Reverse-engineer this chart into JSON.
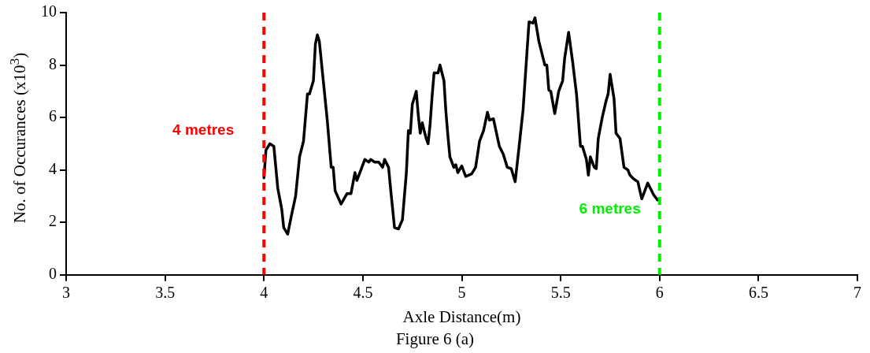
{
  "chart_data": {
    "type": "line",
    "xlabel": "Axle Distance(m)",
    "ylabel": "No. of Occurances (x10$^{3}$)",
    "x": [
      4.0,
      4.01,
      4.03,
      4.05,
      4.07,
      4.09,
      4.1,
      4.12,
      4.14,
      4.16,
      4.18,
      4.2,
      4.22,
      4.23,
      4.25,
      4.26,
      4.27,
      4.28,
      4.3,
      4.32,
      4.34,
      4.35,
      4.36,
      4.39,
      4.42,
      4.44,
      4.46,
      4.47,
      4.48,
      4.51,
      4.53,
      4.54,
      4.56,
      4.58,
      4.6,
      4.61,
      4.63,
      4.64,
      4.66,
      4.68,
      4.7,
      4.72,
      4.73,
      4.74,
      4.75,
      4.77,
      4.78,
      4.79,
      4.8,
      4.82,
      4.83,
      4.84,
      4.85,
      4.86,
      4.88,
      4.89,
      4.91,
      4.92,
      4.93,
      4.94,
      4.96,
      4.97,
      4.98,
      5.0,
      5.02,
      5.05,
      5.07,
      5.09,
      5.11,
      5.13,
      5.14,
      5.16,
      5.19,
      5.21,
      5.23,
      5.25,
      5.27,
      5.29,
      5.31,
      5.34,
      5.36,
      5.37,
      5.39,
      5.42,
      5.43,
      5.44,
      5.45,
      5.47,
      5.49,
      5.51,
      5.52,
      5.54,
      5.56,
      5.58,
      5.6,
      5.61,
      5.63,
      5.64,
      5.65,
      5.67,
      5.68,
      5.69,
      5.71,
      5.73,
      5.74,
      5.75,
      5.77,
      5.78,
      5.8,
      5.82,
      5.84,
      5.85,
      5.87,
      5.89,
      5.91,
      5.94,
      5.97,
      5.99
    ],
    "series": [
      {
        "color": "#000000",
        "values": [
          3.7,
          4.75,
          5.0,
          4.9,
          3.3,
          2.5,
          1.8,
          1.55,
          2.3,
          3.0,
          4.5,
          5.1,
          6.9,
          6.9,
          7.4,
          8.8,
          9.15,
          8.9,
          7.4,
          5.9,
          4.1,
          4.1,
          3.2,
          2.7,
          3.1,
          3.1,
          3.9,
          3.6,
          3.8,
          4.4,
          4.3,
          4.4,
          4.3,
          4.3,
          4.1,
          4.4,
          4.1,
          3.3,
          1.8,
          1.75,
          2.1,
          3.9,
          5.5,
          5.4,
          6.5,
          7.0,
          6.1,
          5.4,
          5.8,
          5.2,
          5.0,
          5.75,
          6.8,
          7.7,
          7.7,
          8.0,
          7.4,
          6.2,
          5.3,
          4.5,
          4.1,
          4.2,
          3.9,
          4.15,
          3.75,
          3.85,
          4.1,
          5.1,
          5.5,
          6.2,
          5.9,
          5.95,
          4.9,
          4.6,
          4.1,
          4.05,
          3.55,
          4.9,
          6.3,
          9.65,
          9.6,
          9.8,
          8.9,
          8.0,
          8.0,
          7.05,
          7.0,
          6.15,
          7.0,
          7.4,
          8.25,
          9.25,
          8.15,
          6.9,
          4.9,
          4.9,
          4.4,
          3.8,
          4.5,
          4.1,
          4.05,
          5.2,
          6.0,
          6.65,
          6.9,
          7.65,
          6.7,
          5.4,
          5.2,
          4.1,
          4.0,
          3.8,
          3.65,
          3.55,
          2.9,
          3.5,
          3.05,
          2.85
        ]
      }
    ],
    "xlim": [
      3,
      7
    ],
    "xticks": [
      3,
      3.5,
      4,
      4.5,
      5,
      5.5,
      6,
      6.5,
      7
    ],
    "ylim": [
      0,
      10
    ],
    "yticks": [
      0,
      2,
      4,
      6,
      8,
      10
    ],
    "grid": false,
    "legend": false,
    "marker": "none",
    "line_style": "solid",
    "ref_lines": [
      {
        "axis": "x",
        "value": 4,
        "label": "4 metres",
        "color": "#ff0000",
        "line_style": "dashed"
      },
      {
        "axis": "x",
        "value": 6,
        "label": "6 metres",
        "color": "#00ee00",
        "line_style": "dashed"
      }
    ],
    "annotations": [
      "Figure 6 (a)"
    ]
  }
}
